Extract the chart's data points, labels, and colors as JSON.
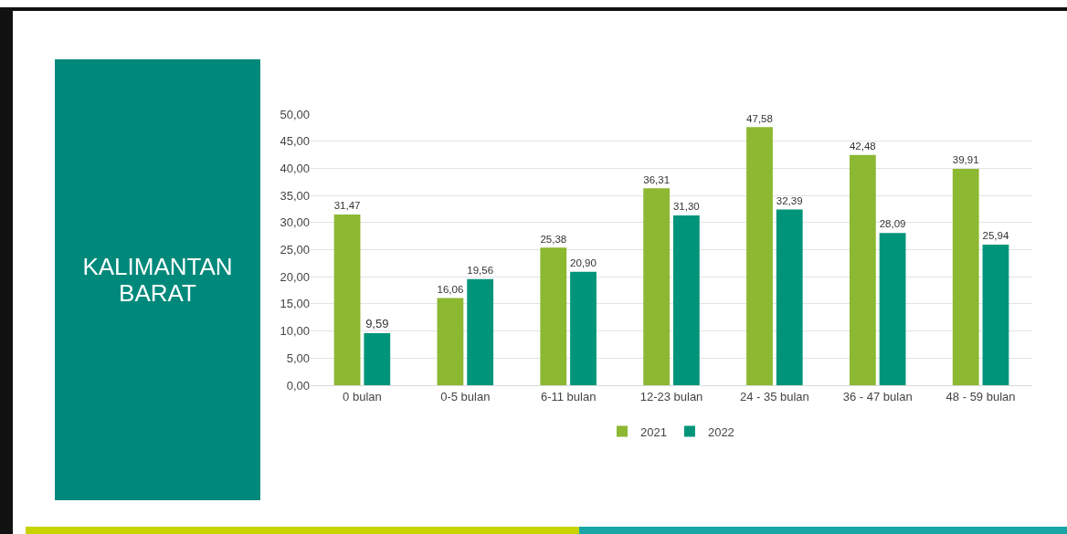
{
  "chart_data": {
    "type": "bar",
    "title": "KALIMANTAN BARAT",
    "categories": [
      "0 bulan",
      "0-5 bulan",
      "6-11 bulan",
      "12-23 bulan",
      "24 - 35 bulan",
      "36 - 47 bulan",
      "48 - 59 bulan"
    ],
    "series": [
      {
        "name": "2021",
        "color": "#8cb832",
        "values": [
          31.47,
          16.06,
          25.38,
          36.31,
          47.58,
          42.48,
          39.91
        ],
        "value_labels": [
          "31,47",
          "16,06",
          "25,38",
          "36,31",
          "47,58",
          "42,48",
          "39,91"
        ]
      },
      {
        "name": "2022",
        "color": "#00957a",
        "values": [
          9.59,
          19.56,
          20.9,
          31.3,
          32.39,
          28.09,
          25.94
        ],
        "value_labels": [
          "9,59",
          "19,56",
          "20,90",
          "31,30",
          "32,39",
          "28,09",
          "25,94"
        ]
      }
    ],
    "ylim": [
      0,
      50
    ],
    "yticks": [
      {
        "value": 0,
        "label": "0,00"
      },
      {
        "value": 5,
        "label": "5,00"
      },
      {
        "value": 10,
        "label": "10,00"
      },
      {
        "value": 15,
        "label": "15,00"
      },
      {
        "value": 20,
        "label": "20,00"
      },
      {
        "value": 25,
        "label": "25,00"
      },
      {
        "value": 30,
        "label": "30,00"
      },
      {
        "value": 35,
        "label": "35,00"
      },
      {
        "value": 40,
        "label": "40,00"
      },
      {
        "value": 45,
        "label": "45,00"
      },
      {
        "value": 50,
        "label": "50,00"
      }
    ],
    "grid": "y",
    "legend": "bottom"
  }
}
